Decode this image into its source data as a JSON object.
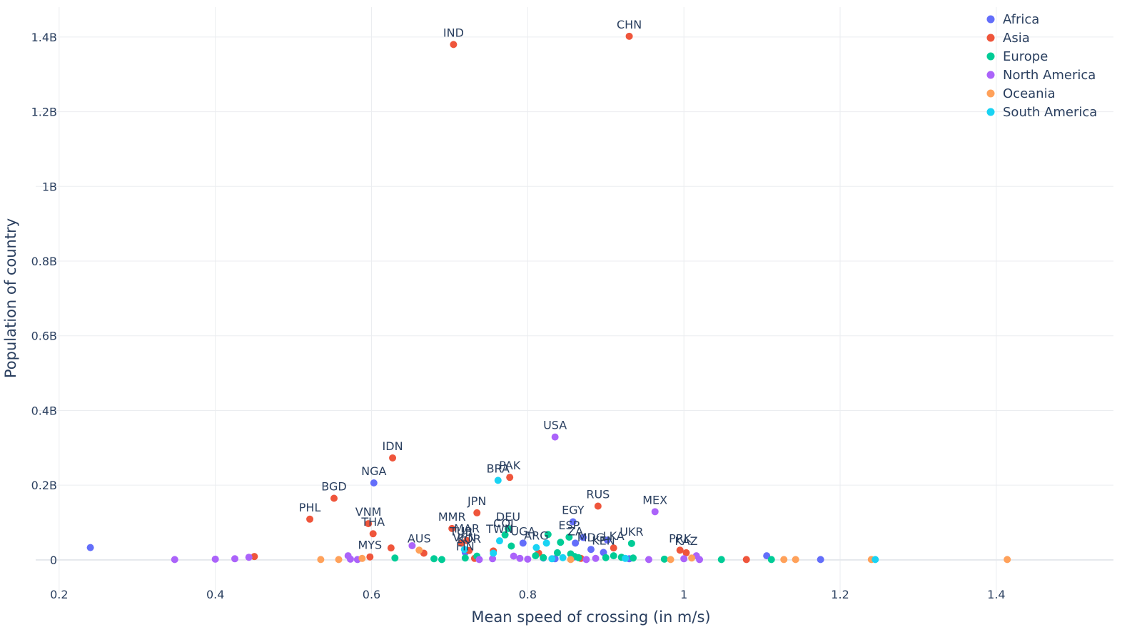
{
  "chart_data": {
    "type": "scatter",
    "xlabel": "Mean speed of crossing (in m/s)",
    "ylabel": "Population of country",
    "xlim": [
      0.17,
      1.55
    ],
    "ylim": [
      -0.09,
      1.48
    ],
    "x_ticks": [
      0.2,
      0.4,
      0.6,
      0.8,
      1.0,
      1.2,
      1.4
    ],
    "x_tick_labels": [
      "0.2",
      "0.4",
      "0.6",
      "0.8",
      "1",
      "1.2",
      "1.4"
    ],
    "y_ticks": [
      0,
      0.2,
      0.4,
      0.6,
      0.8,
      1.0,
      1.2,
      1.4
    ],
    "y_tick_labels": [
      "0",
      "0.2B",
      "0.4B",
      "0.6B",
      "0.8B",
      "1B",
      "1.2B",
      "1.4B"
    ],
    "y_unit_note": "y values in billions",
    "legend_position": "top-right",
    "grid": true,
    "series": [
      {
        "name": "Africa",
        "color": "#636efa",
        "points": [
          {
            "x": 0.24,
            "y": 0.033
          },
          {
            "x": 0.603,
            "y": 0.206,
            "label": "NGA"
          },
          {
            "x": 0.858,
            "y": 0.102,
            "label": "EGY"
          },
          {
            "x": 0.861,
            "y": 0.045,
            "label": "ZA"
          },
          {
            "x": 0.794,
            "y": 0.045,
            "label": "UGA"
          },
          {
            "x": 0.871,
            "y": 0.06
          },
          {
            "x": 0.881,
            "y": 0.028,
            "label": "MDG"
          },
          {
            "x": 0.902,
            "y": 0.053
          },
          {
            "x": 0.897,
            "y": 0.02,
            "label": "KEN"
          },
          {
            "x": 0.72,
            "y": 0.02
          },
          {
            "x": 0.82,
            "y": 0.005
          },
          {
            "x": 0.835,
            "y": 0.003
          },
          {
            "x": 0.86,
            "y": 0.008
          },
          {
            "x": 0.93,
            "y": 0.003
          },
          {
            "x": 1.106,
            "y": 0.011
          },
          {
            "x": 1.175,
            "y": 0.001
          }
        ]
      },
      {
        "name": "Asia",
        "color": "#ef553b",
        "points": [
          {
            "x": 0.705,
            "y": 1.38,
            "label": "IND"
          },
          {
            "x": 0.93,
            "y": 1.402,
            "label": "CHN"
          },
          {
            "x": 0.627,
            "y": 0.273,
            "label": "IDN"
          },
          {
            "x": 0.777,
            "y": 0.221,
            "label": "PAK"
          },
          {
            "x": 0.552,
            "y": 0.165,
            "label": "BGD"
          },
          {
            "x": 0.521,
            "y": 0.109,
            "label": "PHL"
          },
          {
            "x": 0.735,
            "y": 0.126,
            "label": "JPN"
          },
          {
            "x": 0.596,
            "y": 0.097,
            "label": "VNM"
          },
          {
            "x": 0.602,
            "y": 0.07,
            "label": "THA"
          },
          {
            "x": 0.89,
            "y": 0.144,
            "label": "RUS"
          },
          {
            "x": 0.703,
            "y": 0.084,
            "label": "MMR"
          },
          {
            "x": 0.722,
            "y": 0.052,
            "label": "MAR"
          },
          {
            "x": 0.715,
            "y": 0.045,
            "label": "TUR"
          },
          {
            "x": 0.725,
            "y": 0.025,
            "label": "KOR"
          },
          {
            "x": 0.598,
            "y": 0.008,
            "label": "MYS"
          },
          {
            "x": 0.91,
            "y": 0.032,
            "label": "LKA"
          },
          {
            "x": 0.995,
            "y": 0.026,
            "label": "PRK"
          },
          {
            "x": 1.003,
            "y": 0.019,
            "label": "KAZ"
          },
          {
            "x": 0.45,
            "y": 0.009
          },
          {
            "x": 0.625,
            "y": 0.032
          },
          {
            "x": 0.667,
            "y": 0.018
          },
          {
            "x": 0.756,
            "y": 0.024
          },
          {
            "x": 0.814,
            "y": 0.018
          },
          {
            "x": 1.08,
            "y": 0.001
          },
          {
            "x": 0.868,
            "y": 0.004
          },
          {
            "x": 0.732,
            "y": 0.004
          }
        ]
      },
      {
        "name": "Europe",
        "color": "#00cc96",
        "points": [
          {
            "x": 0.775,
            "y": 0.084,
            "label": "DEU"
          },
          {
            "x": 0.771,
            "y": 0.067,
            "label": "COL"
          },
          {
            "x": 0.853,
            "y": 0.061,
            "label": "ESP"
          },
          {
            "x": 0.933,
            "y": 0.044,
            "label": "UKR"
          },
          {
            "x": 0.842,
            "y": 0.047
          },
          {
            "x": 0.826,
            "y": 0.068
          },
          {
            "x": 0.838,
            "y": 0.019
          },
          {
            "x": 0.855,
            "y": 0.016
          },
          {
            "x": 0.779,
            "y": 0.037
          },
          {
            "x": 0.63,
            "y": 0.005
          },
          {
            "x": 0.68,
            "y": 0.003
          },
          {
            "x": 0.69,
            "y": 0.001
          },
          {
            "x": 0.72,
            "y": 0.005,
            "label": "FIN"
          },
          {
            "x": 0.735,
            "y": 0.01
          },
          {
            "x": 0.81,
            "y": 0.011
          },
          {
            "x": 0.82,
            "y": 0.006
          },
          {
            "x": 0.86,
            "y": 0.009
          },
          {
            "x": 0.865,
            "y": 0.006
          },
          {
            "x": 0.9,
            "y": 0.006
          },
          {
            "x": 0.91,
            "y": 0.011
          },
          {
            "x": 0.92,
            "y": 0.007
          },
          {
            "x": 0.935,
            "y": 0.005
          },
          {
            "x": 0.975,
            "y": 0.002
          },
          {
            "x": 1.048,
            "y": 0.001
          },
          {
            "x": 1.112,
            "y": 0.001
          }
        ]
      },
      {
        "name": "North America",
        "color": "#ab63fa",
        "points": [
          {
            "x": 0.835,
            "y": 0.329,
            "label": "USA"
          },
          {
            "x": 0.963,
            "y": 0.129,
            "label": "MEX"
          },
          {
            "x": 0.652,
            "y": 0.038
          },
          {
            "x": 0.348,
            "y": 0.001
          },
          {
            "x": 0.4,
            "y": 0.002
          },
          {
            "x": 0.425,
            "y": 0.003
          },
          {
            "x": 0.443,
            "y": 0.007
          },
          {
            "x": 0.57,
            "y": 0.011
          },
          {
            "x": 0.573,
            "y": 0.002
          },
          {
            "x": 0.582,
            "y": 0.001
          },
          {
            "x": 0.738,
            "y": 0.001
          },
          {
            "x": 0.755,
            "y": 0.003
          },
          {
            "x": 0.782,
            "y": 0.01
          },
          {
            "x": 0.79,
            "y": 0.004
          },
          {
            "x": 0.8,
            "y": 0.002
          },
          {
            "x": 0.875,
            "y": 0.001
          },
          {
            "x": 0.887,
            "y": 0.004
          },
          {
            "x": 0.955,
            "y": 0.001
          },
          {
            "x": 1.0,
            "y": 0.003
          },
          {
            "x": 1.016,
            "y": 0.011
          },
          {
            "x": 1.02,
            "y": 0.001
          }
        ]
      },
      {
        "name": "Oceania",
        "color": "#ffa15a",
        "points": [
          {
            "x": 0.661,
            "y": 0.026,
            "label": "AUS"
          },
          {
            "x": 0.535,
            "y": 0.001
          },
          {
            "x": 0.558,
            "y": 0.001
          },
          {
            "x": 0.588,
            "y": 0.004
          },
          {
            "x": 0.855,
            "y": 0.001
          },
          {
            "x": 0.983,
            "y": 0.001
          },
          {
            "x": 1.01,
            "y": 0.005
          },
          {
            "x": 1.128,
            "y": 0.001
          },
          {
            "x": 1.143,
            "y": 0.001
          },
          {
            "x": 1.24,
            "y": 0.001
          },
          {
            "x": 1.414,
            "y": 0.001
          }
        ]
      },
      {
        "name": "South America",
        "color": "#19d3f3",
        "points": [
          {
            "x": 0.762,
            "y": 0.213,
            "label": "BRA"
          },
          {
            "x": 0.811,
            "y": 0.033,
            "label": "ARG"
          },
          {
            "x": 0.824,
            "y": 0.045
          },
          {
            "x": 0.764,
            "y": 0.051,
            "label": "TWN"
          },
          {
            "x": 0.719,
            "y": 0.028,
            "label": "VEN"
          },
          {
            "x": 0.756,
            "y": 0.018
          },
          {
            "x": 0.831,
            "y": 0.003
          },
          {
            "x": 0.845,
            "y": 0.006
          },
          {
            "x": 0.925,
            "y": 0.004
          },
          {
            "x": 1.245,
            "y": 0.001
          }
        ]
      }
    ]
  }
}
